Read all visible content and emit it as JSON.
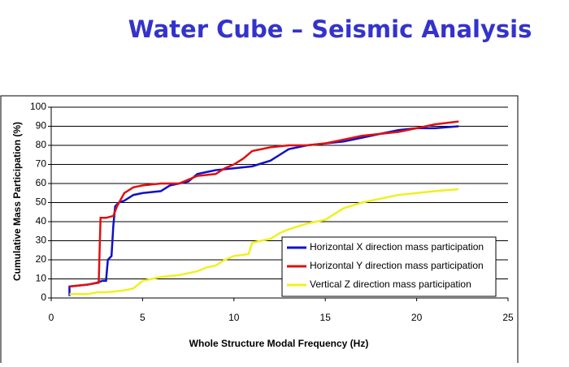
{
  "chart_data": {
    "type": "line",
    "title": "Water Cube – Seismic Analysis",
    "x_label": "Whole Structure Modal Frequency (Hz)",
    "y_label": "Cumulative Mass Participation (%)",
    "xlim": [
      0,
      25
    ],
    "xticks": [
      0,
      5,
      10,
      15,
      20,
      25
    ],
    "ylim": [
      0,
      100
    ],
    "yticks": [
      0,
      10,
      20,
      30,
      40,
      50,
      60,
      70,
      80,
      90,
      100
    ],
    "grid": true,
    "legend": "lower right",
    "series": [
      {
        "name": "Horizontal X direction mass participation",
        "color": "#1010c8",
        "x": [
          1,
          1,
          2,
          2.5,
          2.8,
          3,
          3.1,
          3.3,
          3.4,
          3.5,
          3.7,
          4,
          4.5,
          5,
          6,
          6.5,
          7.5,
          8,
          9,
          10,
          11,
          12,
          12.5,
          13,
          14,
          15,
          16,
          17,
          18,
          19,
          20,
          21,
          22.3
        ],
        "values": [
          1,
          6,
          7,
          8,
          9,
          9,
          20,
          22,
          38,
          48,
          50,
          51,
          54,
          55,
          56,
          59,
          61,
          65,
          67,
          68,
          69,
          72,
          75,
          78,
          80,
          81,
          82,
          84,
          86,
          88,
          89,
          89,
          90
        ]
      },
      {
        "name": "Horizontal Y direction mass participation",
        "color": "#e01010",
        "x": [
          1,
          2,
          2.6,
          2.7,
          3,
          3.4,
          3.6,
          4,
          4.5,
          5,
          6,
          7,
          8,
          9,
          9.5,
          10,
          10.5,
          11,
          12,
          13,
          14,
          15,
          16,
          17,
          18,
          19,
          20,
          21,
          22.3
        ],
        "values": [
          6,
          7,
          8,
          42,
          42,
          43,
          48,
          55,
          58,
          59,
          60,
          60,
          64,
          65,
          68,
          70,
          73,
          77,
          79,
          80,
          80,
          81,
          83,
          85,
          86,
          87,
          89,
          91,
          92.5
        ]
      },
      {
        "name": "Vertical Z direction mass participation",
        "color": "#f0f020",
        "x": [
          1,
          2,
          2.5,
          3,
          4,
          4.5,
          5,
          6,
          7,
          8,
          8.5,
          9,
          9.5,
          10,
          10.8,
          11,
          12,
          12.5,
          13,
          14,
          15,
          15.5,
          16,
          17,
          18,
          19,
          20,
          21,
          22.3
        ],
        "values": [
          2,
          2,
          3,
          3,
          4,
          5,
          9,
          11,
          12,
          14,
          16,
          17,
          20,
          22,
          23,
          29,
          31,
          34,
          36,
          39,
          41,
          44,
          47,
          50,
          52,
          54,
          55,
          56,
          57
        ]
      }
    ]
  }
}
